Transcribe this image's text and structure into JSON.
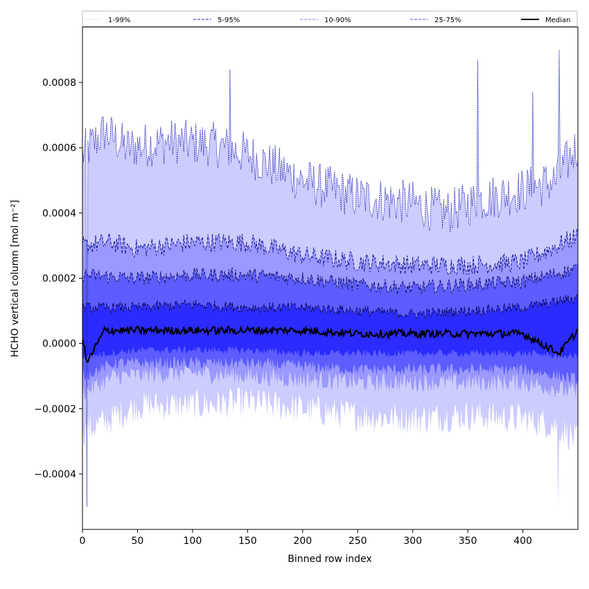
{
  "chart_data": {
    "type": "area",
    "xlabel": "Binned row index",
    "ylabel": "HCHO vertical column [mol m⁻²]",
    "xlim": [
      0,
      450
    ],
    "ylim": [
      -0.00057,
      0.00097
    ],
    "xticks": [
      0,
      50,
      100,
      150,
      200,
      250,
      300,
      350,
      400
    ],
    "xtick_labels": [
      "0",
      "50",
      "100",
      "150",
      "200",
      "250",
      "300",
      "350",
      "400"
    ],
    "yticks": [
      -0.0004,
      -0.0002,
      0.0,
      0.0002,
      0.0004,
      0.0006,
      0.0008
    ],
    "ytick_labels": [
      "−0.0004",
      "−0.0002",
      "0.0000",
      "0.0002",
      "0.0004",
      "0.0006",
      "0.0008"
    ],
    "grid": false,
    "legend_position": "top",
    "legend": [
      {
        "label": "1-99%",
        "style": "dotted",
        "color": "#ccccff"
      },
      {
        "label": "5-95%",
        "style": "dashed",
        "color": "#1f1fb0"
      },
      {
        "label": "10-90%",
        "style": "dashed",
        "color": "#7f7fff"
      },
      {
        "label": "25-75%",
        "style": "dashed",
        "color": "#4c4cff"
      },
      {
        "label": "Median",
        "style": "solid",
        "color": "#000000"
      }
    ],
    "bands": [
      {
        "name": "1-99%",
        "fill": "#ccccff",
        "upper_key": [
          [
            0,
            0.00058
          ],
          [
            20,
            0.00065
          ],
          [
            40,
            0.0006
          ],
          [
            80,
            0.00062
          ],
          [
            120,
            0.00061
          ],
          [
            150,
            0.00058
          ],
          [
            200,
            0.0005
          ],
          [
            250,
            0.00045
          ],
          [
            300,
            0.00043
          ],
          [
            330,
            0.0004
          ],
          [
            360,
            0.00044
          ],
          [
            400,
            0.00047
          ],
          [
            430,
            0.0005
          ],
          [
            450,
            0.00061
          ]
        ],
        "lower_key": [
          [
            0,
            -0.00027
          ],
          [
            20,
            -0.00024
          ],
          [
            50,
            -0.00019
          ],
          [
            100,
            -0.00019
          ],
          [
            150,
            -0.00018
          ],
          [
            200,
            -0.0002
          ],
          [
            250,
            -0.00022
          ],
          [
            300,
            -0.00023
          ],
          [
            350,
            -0.00022
          ],
          [
            400,
            -0.00023
          ],
          [
            430,
            -0.00025
          ],
          [
            450,
            -0.0003
          ]
        ]
      },
      {
        "name": "5-95%",
        "fill": "#9999ff",
        "upper_key": [
          [
            0,
            0.0003
          ],
          [
            25,
            0.00031
          ],
          [
            50,
            0.00029
          ],
          [
            100,
            0.00031
          ],
          [
            150,
            0.00031
          ],
          [
            200,
            0.00027
          ],
          [
            250,
            0.00025
          ],
          [
            300,
            0.00024
          ],
          [
            350,
            0.00024
          ],
          [
            400,
            0.00025
          ],
          [
            450,
            0.00033
          ]
        ],
        "lower_key": [
          [
            0,
            -0.00015
          ],
          [
            30,
            -0.0001
          ],
          [
            100,
            -9e-05
          ],
          [
            150,
            -0.0001
          ],
          [
            200,
            -0.00011
          ],
          [
            250,
            -0.00012
          ],
          [
            300,
            -0.00012
          ],
          [
            350,
            -0.00012
          ],
          [
            400,
            -0.00012
          ],
          [
            450,
            -0.00015
          ]
        ]
      },
      {
        "name": "10-90%",
        "fill": "#5c5cff",
        "upper_key": [
          [
            0,
            0.00021
          ],
          [
            50,
            0.0002
          ],
          [
            100,
            0.00021
          ],
          [
            150,
            0.00021
          ],
          [
            200,
            0.0002
          ],
          [
            250,
            0.00018
          ],
          [
            300,
            0.00017
          ],
          [
            350,
            0.00018
          ],
          [
            400,
            0.00019
          ],
          [
            450,
            0.00023
          ]
        ],
        "lower_key": [
          [
            0,
            -0.0001
          ],
          [
            30,
            -6e-05
          ],
          [
            100,
            -6e-05
          ],
          [
            150,
            -6e-05
          ],
          [
            200,
            -7e-05
          ],
          [
            250,
            -8e-05
          ],
          [
            300,
            -8e-05
          ],
          [
            350,
            -8e-05
          ],
          [
            400,
            -8e-05
          ],
          [
            450,
            -0.00011
          ]
        ]
      },
      {
        "name": "25-75%",
        "fill": "#2b2bff",
        "upper_key": [
          [
            0,
            0.00011
          ],
          [
            50,
            0.00011
          ],
          [
            100,
            0.00012
          ],
          [
            150,
            0.00011
          ],
          [
            200,
            0.00011
          ],
          [
            250,
            0.0001
          ],
          [
            300,
            9e-05
          ],
          [
            350,
            0.0001
          ],
          [
            400,
            0.00011
          ],
          [
            450,
            0.00014
          ]
        ],
        "lower_key": [
          [
            0,
            -4e-05
          ],
          [
            50,
            -2e-05
          ],
          [
            100,
            -2e-05
          ],
          [
            150,
            -2e-05
          ],
          [
            200,
            -3e-05
          ],
          [
            250,
            -3e-05
          ],
          [
            300,
            -3e-05
          ],
          [
            350,
            -3e-05
          ],
          [
            400,
            -3e-05
          ],
          [
            450,
            -4e-05
          ]
        ]
      }
    ],
    "median_key": [
      [
        0,
        2e-05
      ],
      [
        4,
        -6e-05
      ],
      [
        20,
        4e-05
      ],
      [
        50,
        4e-05
      ],
      [
        100,
        4e-05
      ],
      [
        150,
        4e-05
      ],
      [
        200,
        4e-05
      ],
      [
        250,
        3e-05
      ],
      [
        300,
        3e-05
      ],
      [
        350,
        3e-05
      ],
      [
        400,
        3e-05
      ],
      [
        433,
        -3e-05
      ],
      [
        450,
        4e-05
      ]
    ],
    "spikes": [
      {
        "x": 4,
        "upper": -0.0005
      },
      {
        "x": 134,
        "upper": 0.00084
      },
      {
        "x": 359,
        "upper": 0.00087
      },
      {
        "x": 409,
        "upper": 0.00077
      },
      {
        "x": 433,
        "upper": 0.0009
      },
      {
        "x": 432,
        "lower": -0.0005
      }
    ]
  }
}
